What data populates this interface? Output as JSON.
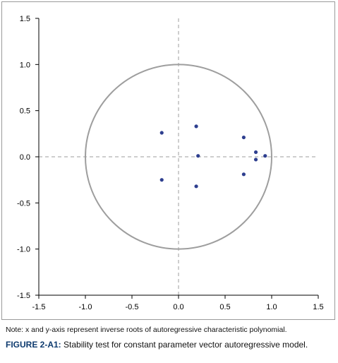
{
  "chart_data": {
    "type": "scatter",
    "title": "",
    "xlabel": "",
    "ylabel": "",
    "xlim": [
      -1.5,
      1.5
    ],
    "ylim": [
      -1.5,
      1.5
    ],
    "x_ticks": [
      "-1.5",
      "-1.0",
      "-0.5",
      "0.0",
      "0.5",
      "1.0",
      "1.5"
    ],
    "y_ticks": [
      "1.5",
      "1.0",
      "0.5",
      "0.0",
      "-0.5",
      "-1.0",
      "-1.5"
    ],
    "unit_circle": {
      "center": [
        0,
        0
      ],
      "radius": 1
    },
    "reference_lines": {
      "x": 0,
      "y": 0
    },
    "points": [
      {
        "x": -0.18,
        "y": 0.26
      },
      {
        "x": -0.18,
        "y": -0.25
      },
      {
        "x": 0.19,
        "y": 0.33
      },
      {
        "x": 0.19,
        "y": -0.32
      },
      {
        "x": 0.21,
        "y": 0.01
      },
      {
        "x": 0.7,
        "y": 0.21
      },
      {
        "x": 0.7,
        "y": -0.19
      },
      {
        "x": 0.83,
        "y": 0.05
      },
      {
        "x": 0.83,
        "y": -0.03
      },
      {
        "x": 0.93,
        "y": 0.01
      }
    ],
    "colors": {
      "points": "#2e3f8f",
      "circle": "#9e9e9e",
      "axis": "#000000",
      "reference": "#9e9e9e"
    },
    "grid": false
  },
  "note": "Note: x and y-axis represent inverse roots of autoregressive characteristic polynomial.",
  "caption": {
    "label": "FIGURE 2-A1:",
    "text": " Stability test for constant parameter vector autoregressive model."
  }
}
